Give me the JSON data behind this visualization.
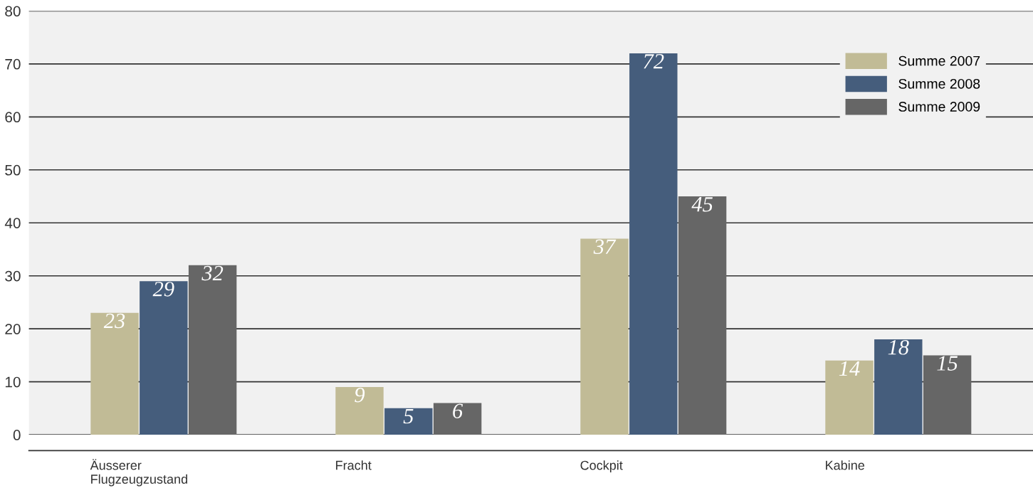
{
  "chart_data": {
    "type": "bar",
    "categories": [
      "Äusserer\nFlugzeugzustand",
      "Fracht",
      "Cockpit",
      "Kabine"
    ],
    "series": [
      {
        "name": "Summe 2007",
        "color": "#c1bb96",
        "values": [
          23,
          9,
          37,
          14
        ]
      },
      {
        "name": "Summe 2008",
        "color": "#455d7c",
        "values": [
          29,
          5,
          72,
          18
        ]
      },
      {
        "name": "Summe 2009",
        "color": "#666666",
        "values": [
          32,
          6,
          45,
          15
        ]
      }
    ],
    "ylim": [
      0,
      80
    ],
    "yticks": [
      0,
      10,
      20,
      30,
      40,
      50,
      60,
      70,
      80
    ],
    "grid": "y",
    "legend": "top right",
    "data_labels": true
  }
}
